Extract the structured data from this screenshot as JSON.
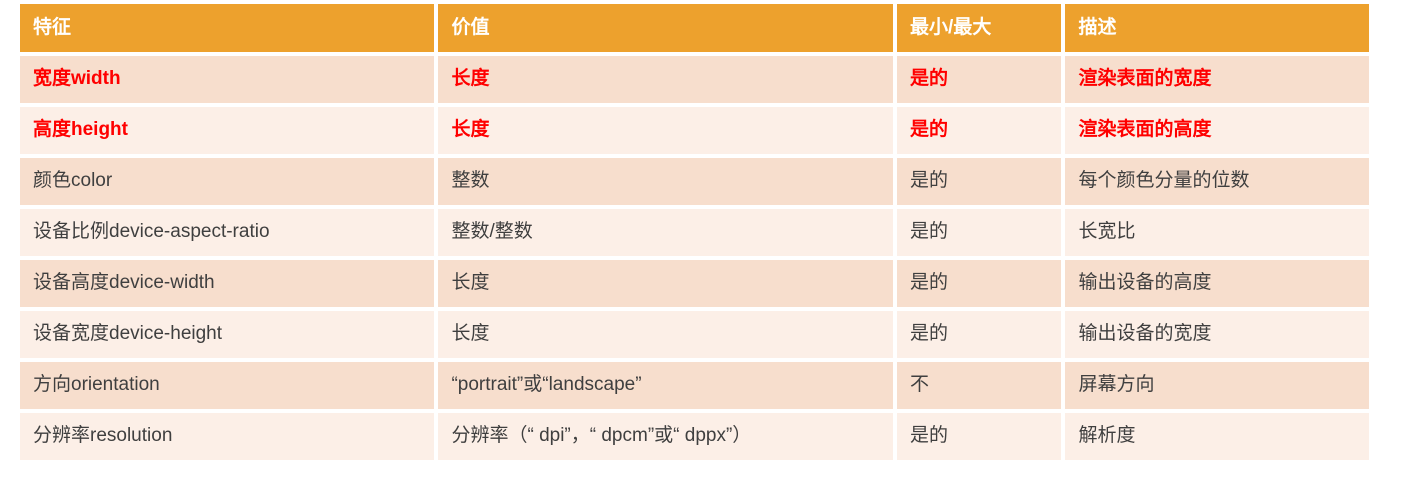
{
  "colors": {
    "header_bg": "#EDA12D",
    "header_text": "#FFFFFF",
    "row_odd_bg": "#F7DECD",
    "row_even_bg": "#FCEFE7",
    "body_text": "#3F3F3F",
    "highlight_text": "#FF0000"
  },
  "table": {
    "columns": [
      {
        "label": "特征"
      },
      {
        "label": "价值"
      },
      {
        "label": "最小/最大"
      },
      {
        "label": "描述"
      }
    ],
    "rows": [
      {
        "feature": "宽度width",
        "value": "长度",
        "minmax": "是的",
        "description": "渲染表面的宽度",
        "highlight": true
      },
      {
        "feature": "高度height",
        "value": "长度",
        "minmax": "是的",
        "description": "渲染表面的高度",
        "highlight": true
      },
      {
        "feature": "颜色color",
        "value": "整数",
        "minmax": "是的",
        "description": "每个颜色分量的位数",
        "highlight": false
      },
      {
        "feature": "设备比例device-aspect-ratio",
        "value": "整数/整数",
        "minmax": "是的",
        "description": "长宽比",
        "highlight": false
      },
      {
        "feature": "设备高度device-width",
        "value": "长度",
        "minmax": "是的",
        "description": "输出设备的高度",
        "highlight": false
      },
      {
        "feature": "设备宽度device-height",
        "value": "长度",
        "minmax": "是的",
        "description": "输出设备的宽度",
        "highlight": false
      },
      {
        "feature": "方向orientation",
        "value": "“portrait”或“landscape”",
        "minmax": "不",
        "description": "屏幕方向",
        "highlight": false
      },
      {
        "feature": "分辨率resolution",
        "value": "分辨率（“ dpi”，“ dpcm”或“ dppx”）",
        "minmax": "是的",
        "description": "解析度",
        "highlight": false
      }
    ]
  }
}
